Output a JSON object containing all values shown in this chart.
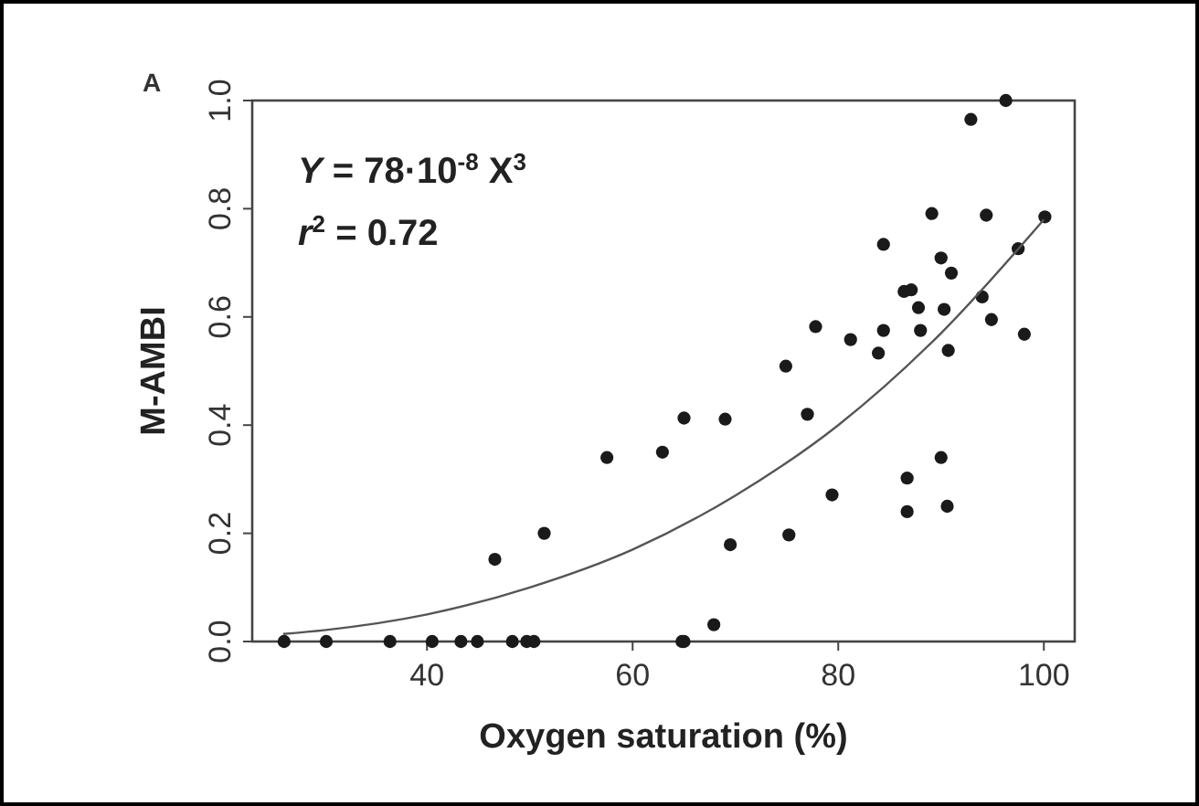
{
  "chart_data": {
    "type": "scatter",
    "title": "A",
    "xlabel": "Oxygen saturation (%)",
    "ylabel": "M-AMBI",
    "annotations": [
      "Y = 78·10$^{-8}$  X$^{3}$",
      "r$^{2}$  = 0.72"
    ],
    "xlim": [
      23,
      103
    ],
    "ylim": [
      0,
      1
    ],
    "xticks": [
      40,
      60,
      80,
      100
    ],
    "yticks": [
      {
        "value": 0,
        "label": "0.0"
      },
      {
        "value": 0.2,
        "label": "0.2"
      },
      {
        "value": 0.4,
        "label": "0.4"
      },
      {
        "value": 0.6,
        "label": "0.6"
      },
      {
        "value": 0.8,
        "label": "0.8"
      },
      {
        "value": 1,
        "label": "1.0"
      }
    ],
    "grid": false,
    "series": [
      {
        "color": "#1a1a1a",
        "marker": "circle",
        "x": [
          26.1,
          30.2,
          36.4,
          40.5,
          43.3,
          44.9,
          48.3,
          49.7,
          50.4,
          64.8,
          65.0,
          67.9,
          46.6,
          51.4,
          57.5,
          62.9,
          65.0,
          96.3,
          92.9,
          89.1,
          94.4,
          100.1,
          84.4,
          97.5,
          90.0,
          91.0,
          86.4,
          87.1,
          87.8,
          90.3,
          94.0,
          94.9,
          98.1,
          84.4,
          88.0,
          83.9,
          90.7,
          81.2,
          77.8,
          74.9,
          77.0,
          69.0,
          90.0,
          86.7,
          79.4,
          86.7,
          90.6,
          75.2,
          69.5
        ],
        "values": [
          0,
          0,
          0,
          0,
          0,
          0,
          0,
          0,
          0,
          0,
          0,
          0.031,
          0.152,
          0.2,
          0.34,
          0.35,
          0.413,
          1.0,
          0.965,
          0.791,
          0.788,
          0.785,
          0.734,
          0.726,
          0.709,
          0.681,
          0.647,
          0.65,
          0.617,
          0.614,
          0.637,
          0.595,
          0.568,
          0.575,
          0.575,
          0.533,
          0.538,
          0.558,
          0.582,
          0.509,
          0.42,
          0.411,
          0.34,
          0.302,
          0.271,
          0.24,
          0.25,
          0.197,
          0.179
        ]
      },
      {
        "type": "line",
        "color": "#555555",
        "marker": "none",
        "line_style": "solid",
        "x": [
          26,
          30,
          40,
          50,
          60,
          70,
          80,
          90,
          100
        ],
        "values": [
          0.014,
          0.021,
          0.05,
          0.1,
          0.17,
          0.27,
          0.4,
          0.57,
          0.78
        ]
      }
    ]
  }
}
